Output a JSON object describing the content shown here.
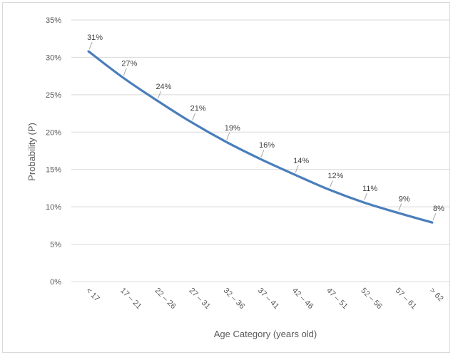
{
  "chart_data": {
    "type": "line",
    "title": "",
    "xlabel": "Age Category (years old)",
    "ylabel": "Probability (P)",
    "categories": [
      "< 17",
      "17 – 21",
      "22 – 26",
      "27 – 31",
      "32 – 36",
      "37 – 41",
      "42 – 46",
      "47 – 51",
      "52 – 56",
      "57 – 61",
      "> 62"
    ],
    "series": [
      {
        "values": [
          30.8,
          27.3,
          24.2,
          21.3,
          18.7,
          16.4,
          14.3,
          12.3,
          10.6,
          9.2,
          7.9
        ],
        "labels": [
          "31%",
          "27%",
          "24%",
          "21%",
          "19%",
          "16%",
          "14%",
          "12%",
          "11%",
          "9%",
          "8%"
        ]
      }
    ],
    "ylim": [
      0,
      35
    ],
    "yticks": [
      "0%",
      "5%",
      "10%",
      "15%",
      "20%",
      "25%",
      "30%",
      "35%"
    ],
    "grid": "horizontal",
    "legend": "none",
    "line_color": "#4a7ebb",
    "grid_color": "#d9d9d9"
  }
}
